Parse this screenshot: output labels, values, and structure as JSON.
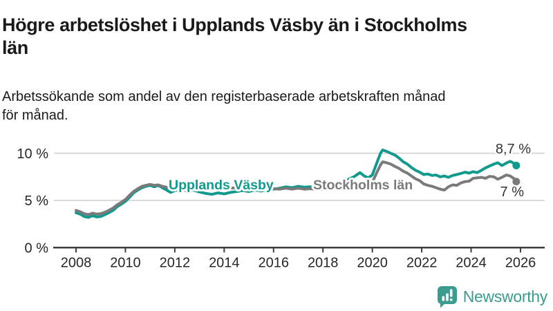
{
  "header": {
    "title_lines": [
      "Högre arbetslöshet i Upplands Väsby än i Stockholms",
      "län"
    ],
    "subtitle_lines": [
      "Arbetssökande som andel av den registerbaserade arbetskraften månad",
      "för månad."
    ]
  },
  "colors": {
    "accent_teal": "#109a8d",
    "series_gray": "#7a7a7c",
    "grid": "#d9d9d9",
    "axis": "#3d3d3d",
    "tick_text": "#262626",
    "value_label": "#333333",
    "logo_teal": "#3a9b8e"
  },
  "chart_data": {
    "type": "line",
    "title": "Högre arbetslöshet i Upplands Väsby än i Stockholms län",
    "subtitle": "Arbetssökande som andel av den registerbaserade arbetskraften månad för månad.",
    "ylabel": "",
    "xlabel": "",
    "ylim": [
      0,
      10
    ],
    "grid": "horizontal",
    "yticks": [
      {
        "value": 0,
        "label": "0 %"
      },
      {
        "value": 5,
        "label": "5 %"
      },
      {
        "value": 10,
        "label": "10 %"
      }
    ],
    "xticks": [
      2008,
      2010,
      2012,
      2014,
      2016,
      2018,
      2020,
      2022,
      2024,
      2026
    ],
    "x": [
      2008.0,
      2008.17,
      2008.33,
      2008.5,
      2008.67,
      2008.83,
      2009.0,
      2009.17,
      2009.33,
      2009.5,
      2009.67,
      2009.83,
      2010.0,
      2010.17,
      2010.33,
      2010.5,
      2010.67,
      2010.83,
      2011.0,
      2011.17,
      2011.33,
      2011.5,
      2011.67,
      2011.83,
      2012.0,
      2012.25,
      2012.5,
      2012.75,
      2013.0,
      2013.25,
      2013.5,
      2013.75,
      2014.0,
      2014.25,
      2014.5,
      2014.75,
      2015.0,
      2015.25,
      2015.5,
      2015.75,
      2016.0,
      2016.25,
      2016.5,
      2016.75,
      2017.0,
      2017.25,
      2017.5,
      2017.75,
      2018.0,
      2018.25,
      2018.5,
      2018.75,
      2019.0,
      2019.25,
      2019.5,
      2019.67,
      2019.83,
      2020.0,
      2020.17,
      2020.33,
      2020.42,
      2020.58,
      2020.75,
      2020.92,
      2021.08,
      2021.25,
      2021.42,
      2021.58,
      2021.75,
      2021.92,
      2022.08,
      2022.25,
      2022.42,
      2022.58,
      2022.75,
      2022.92,
      2023.08,
      2023.25,
      2023.42,
      2023.58,
      2023.75,
      2023.92,
      2024.08,
      2024.25,
      2024.42,
      2024.58,
      2024.75,
      2024.92,
      2025.08,
      2025.25,
      2025.42,
      2025.58,
      2025.75,
      2025.83
    ],
    "series": [
      {
        "name": "Upplands Väsby",
        "slug": "upplands-vasby",
        "color": "#109a8d",
        "end_label": "8,7 %",
        "end_value": 8.7,
        "values": [
          3.7,
          3.55,
          3.3,
          3.2,
          3.4,
          3.25,
          3.3,
          3.5,
          3.7,
          3.95,
          4.35,
          4.6,
          4.9,
          5.35,
          5.8,
          6.1,
          6.35,
          6.5,
          6.6,
          6.45,
          6.6,
          6.35,
          6.1,
          5.85,
          6.05,
          6.2,
          6.0,
          6.1,
          5.9,
          5.75,
          5.65,
          5.8,
          5.7,
          5.85,
          5.95,
          6.05,
          5.95,
          6.1,
          6.0,
          6.15,
          6.2,
          6.3,
          6.45,
          6.35,
          6.5,
          6.4,
          6.45,
          6.35,
          6.4,
          6.5,
          6.65,
          6.9,
          7.2,
          7.5,
          7.95,
          7.6,
          7.4,
          7.7,
          8.9,
          10.0,
          10.35,
          10.2,
          10.0,
          9.8,
          9.5,
          9.1,
          8.85,
          8.5,
          8.2,
          8.0,
          7.75,
          7.8,
          7.65,
          7.7,
          7.5,
          7.6,
          7.45,
          7.65,
          7.75,
          7.85,
          8.0,
          7.9,
          8.05,
          7.95,
          8.2,
          8.45,
          8.65,
          8.85,
          9.0,
          8.7,
          8.95,
          9.15,
          8.9,
          8.7
        ]
      },
      {
        "name": "Stockholms län",
        "slug": "stockholms-lan",
        "color": "#7a7a7c",
        "end_label": "7 %",
        "end_value": 7.0,
        "values": [
          3.95,
          3.8,
          3.6,
          3.5,
          3.65,
          3.55,
          3.6,
          3.75,
          3.95,
          4.2,
          4.55,
          4.8,
          5.1,
          5.55,
          5.95,
          6.25,
          6.5,
          6.6,
          6.7,
          6.6,
          6.65,
          6.5,
          6.4,
          6.3,
          6.35,
          6.4,
          6.3,
          6.35,
          6.25,
          6.3,
          6.2,
          6.3,
          6.25,
          6.3,
          6.35,
          6.3,
          6.25,
          6.3,
          6.25,
          6.3,
          6.25,
          6.2,
          6.3,
          6.2,
          6.3,
          6.2,
          6.25,
          6.15,
          6.2,
          6.25,
          6.3,
          6.4,
          6.5,
          6.6,
          6.75,
          6.65,
          6.6,
          6.9,
          7.9,
          8.75,
          9.1,
          9.0,
          8.85,
          8.6,
          8.4,
          8.1,
          7.9,
          7.6,
          7.3,
          7.1,
          6.75,
          6.6,
          6.5,
          6.35,
          6.2,
          6.1,
          6.45,
          6.65,
          6.6,
          6.85,
          7.0,
          7.05,
          7.35,
          7.4,
          7.45,
          7.35,
          7.55,
          7.5,
          7.25,
          7.45,
          7.7,
          7.6,
          7.3,
          7.0
        ]
      }
    ],
    "legend_position": "inline-labels-on-lines"
  },
  "footer": {
    "brand": "Newsworthy"
  }
}
